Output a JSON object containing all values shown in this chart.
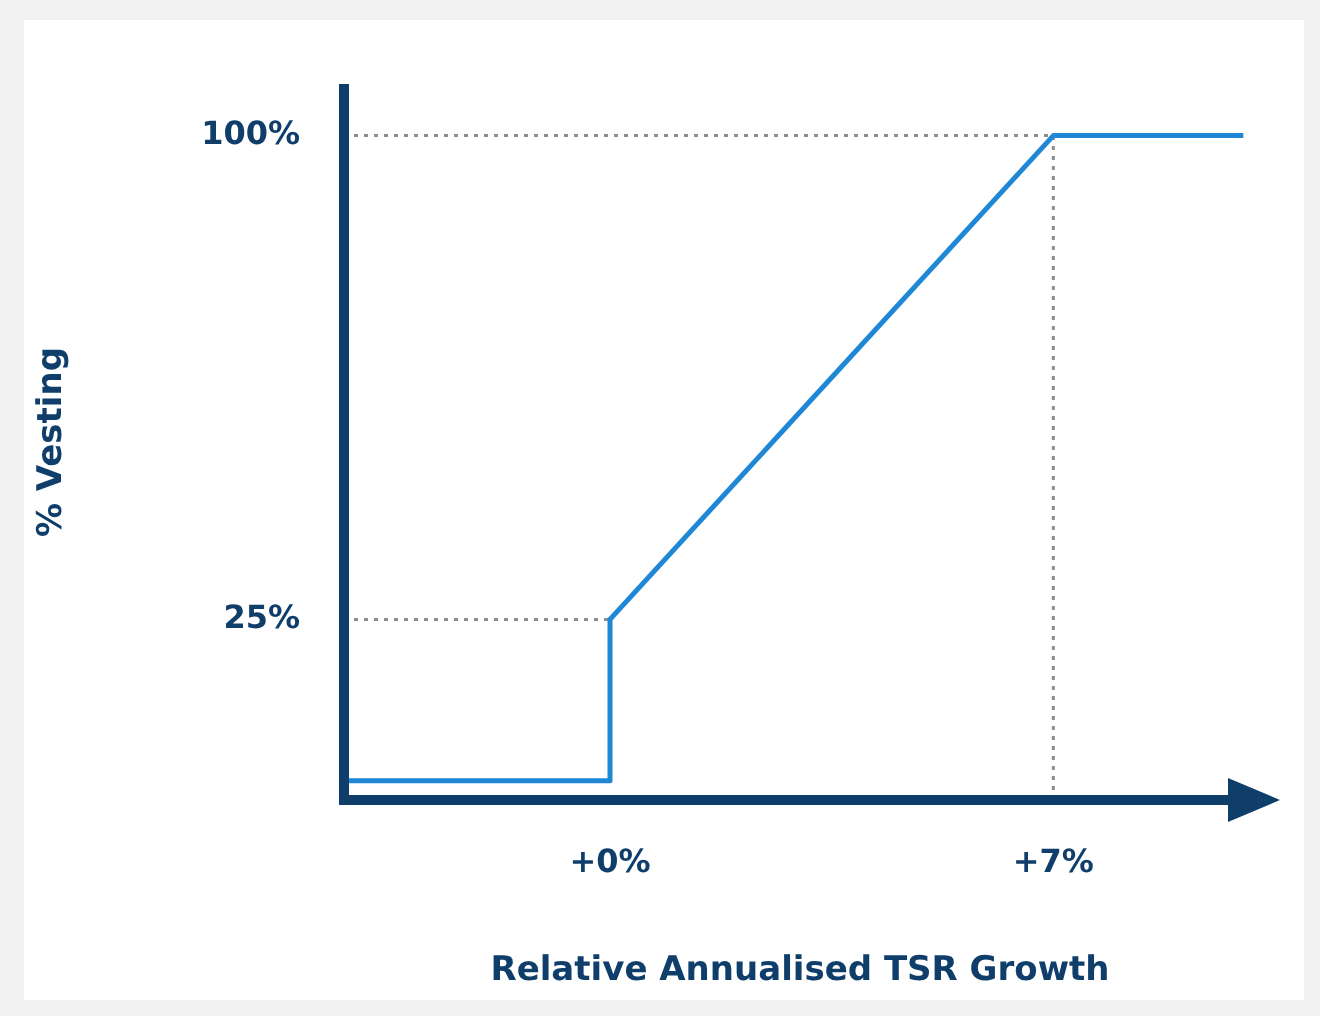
{
  "chart_data": {
    "type": "line",
    "xlabel": "Relative Annualised TSR Growth",
    "ylabel": "% Vesting",
    "x": [
      -4.2,
      0,
      0,
      7,
      10
    ],
    "series": [
      {
        "color": "#1e88d6",
        "values": [
          0,
          0,
          25,
          100,
          100
        ]
      }
    ],
    "xlim": [
      -4.2,
      10.2
    ],
    "ylim": [
      -3,
      108
    ],
    "xticks": [
      {
        "value": 0,
        "label": "+0%"
      },
      {
        "value": 7,
        "label": "+7%"
      }
    ],
    "yticks": [
      {
        "value": 25,
        "label": "25%"
      },
      {
        "value": 100,
        "label": "100%"
      }
    ],
    "ref_lines": [
      {
        "axis": "y",
        "value": 25,
        "color": "#8c8c8c",
        "line_style": "dotted"
      },
      {
        "axis": "y",
        "value": 100,
        "color": "#8c8c8c",
        "line_style": "dotted"
      },
      {
        "axis": "x",
        "value": 7,
        "color": "#8c8c8c",
        "line_style": "dotted"
      }
    ],
    "grid": false,
    "legend": false
  }
}
